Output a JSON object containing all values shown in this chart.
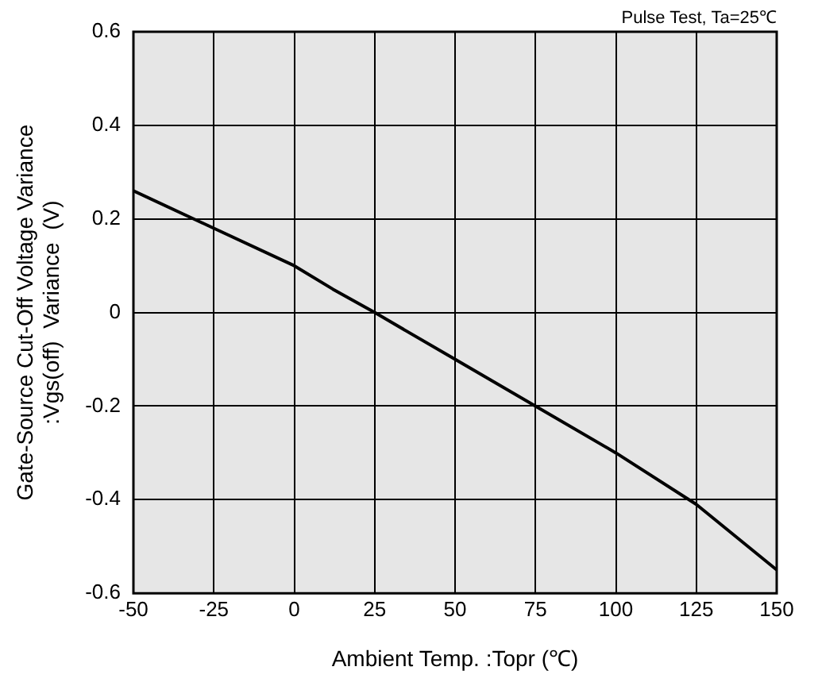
{
  "chart_data": {
    "type": "line",
    "xlabel": "Ambient Temp. :Topr (℃)",
    "ylabel": "Gate-Source Cut-Off Voltage Variance\n:Vgs(off)  Variance  (V)",
    "annotations": [
      "Pulse Test, Ta=25℃"
    ],
    "x": [
      -50,
      -25,
      0,
      12,
      25,
      50,
      75,
      100,
      125,
      150
    ],
    "series": [
      {
        "color": "#000000",
        "values": [
          0.26,
          0.18,
          0.1,
          0.05,
          0.0,
          -0.1,
          -0.2,
          -0.3,
          -0.41,
          -0.55
        ]
      }
    ],
    "xlim": [
      -50,
      150
    ],
    "xticks": [
      -50,
      -25,
      0,
      25,
      50,
      75,
      100,
      125,
      150
    ],
    "ylim": [
      -0.6,
      0.6
    ],
    "yticks": [
      -0.6,
      -0.4,
      -0.2,
      0,
      0.2,
      0.4,
      0.6
    ],
    "grid": true,
    "legend": false,
    "marker": "none",
    "line_style": "solid"
  }
}
